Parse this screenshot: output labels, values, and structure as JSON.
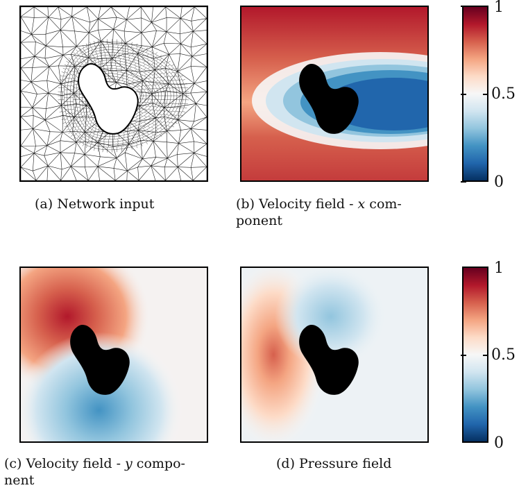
{
  "figure": {
    "panels": [
      {
        "id": "a",
        "caption_lines": [
          "(a) Network input"
        ],
        "field": "mesh"
      },
      {
        "id": "b",
        "caption_lines": [
          "(b) Velocity field - x com-",
          "ponent"
        ],
        "field": "ux"
      },
      {
        "id": "c",
        "caption_lines": [
          "(c) Velocity field - y compo-",
          "nent"
        ],
        "field": "uy"
      },
      {
        "id": "d",
        "caption_lines": [
          "(d) Pressure field"
        ],
        "field": "p"
      }
    ],
    "colorbar": {
      "ticks": [
        "1",
        "0.5",
        "0"
      ],
      "colors": [
        "#67001f",
        "#b2182b",
        "#d6604d",
        "#f4a582",
        "#fddbc7",
        "#f7f7f7",
        "#d1e5f0",
        "#92c5de",
        "#4393c3",
        "#2166ac",
        "#053061"
      ]
    },
    "colors": {
      "obstacle": "#000000",
      "mesh_line": "#1a1a1a"
    }
  }
}
